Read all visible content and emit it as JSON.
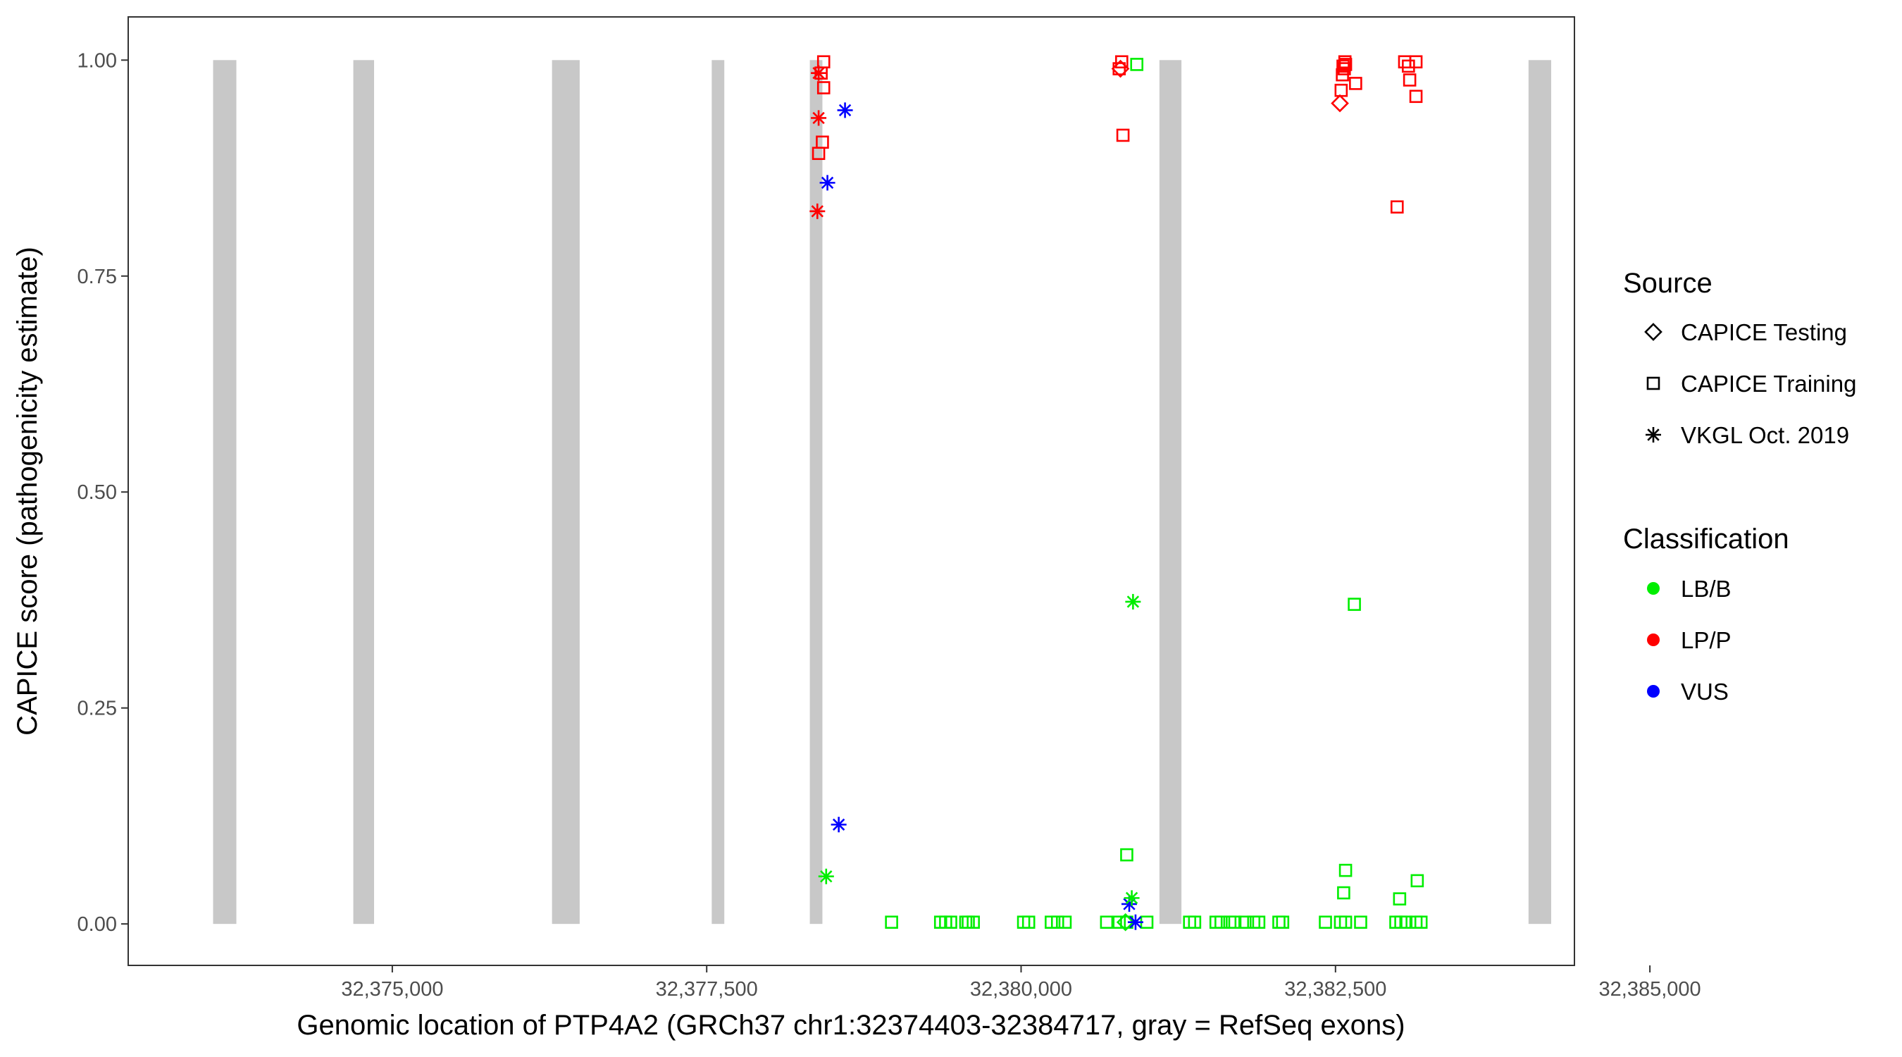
{
  "chart_data": {
    "type": "scatter",
    "title": "",
    "xlabel": "Genomic location of PTP4A2 (GRCh37 chr1:32374403-32384717, gray = RefSeq exons)",
    "ylabel": "CAPICE score (pathogenicity estimate)",
    "xlim": [
      32372900,
      32384400
    ],
    "ylim": [
      -0.048,
      1.05
    ],
    "x_ticks": [
      32375000,
      32377500,
      32380000,
      32382500,
      32385000
    ],
    "x_tick_labels": [
      "32,375,000",
      "32,377,500",
      "32,380,000",
      "32,382,500",
      "32,385,000"
    ],
    "y_ticks": [
      0,
      0.25,
      0.5,
      0.75,
      1.0
    ],
    "y_tick_labels": [
      "0.00",
      "0.25",
      "0.50",
      "0.75",
      "1.00"
    ],
    "grid": false,
    "exons": [
      [
        32373575,
        32373760
      ],
      [
        32374690,
        32374855
      ],
      [
        32376270,
        32376490
      ],
      [
        32377540,
        32377640
      ],
      [
        32378320,
        32378420
      ],
      [
        32381100,
        32381275
      ],
      [
        32384035,
        32384215
      ]
    ],
    "legend": {
      "position": "right",
      "source": {
        "title": "Source",
        "items": [
          {
            "label": "CAPICE Testing",
            "shape": "diamond"
          },
          {
            "label": "CAPICE Training",
            "shape": "square"
          },
          {
            "label": "VKGL Oct. 2019",
            "shape": "asterisk"
          }
        ]
      },
      "classification": {
        "title": "Classification",
        "items": [
          {
            "label": "LB/B",
            "color": "#00ee00"
          },
          {
            "label": "LP/P",
            "color": "#ff0000"
          },
          {
            "label": "VUS",
            "color": "#0000ff"
          }
        ]
      }
    },
    "series": [
      {
        "source": "CAPICE Testing",
        "classification": "LP/P",
        "points": [
          [
            32380790,
            0.99
          ],
          [
            32382535,
            0.95
          ]
        ]
      },
      {
        "source": "CAPICE Testing",
        "classification": "LB/B",
        "points": [
          [
            32380830,
            0.002
          ]
        ]
      },
      {
        "source": "CAPICE Training",
        "classification": "LP/P",
        "points": [
          [
            32378430,
            0.998
          ],
          [
            32378410,
            0.985
          ],
          [
            32378430,
            0.968
          ],
          [
            32378420,
            0.905
          ],
          [
            32378390,
            0.892
          ],
          [
            32380800,
            0.998
          ],
          [
            32380780,
            0.99
          ],
          [
            32380810,
            0.913
          ],
          [
            32382575,
            0.998
          ],
          [
            32382580,
            0.995
          ],
          [
            32382560,
            0.993
          ],
          [
            32382570,
            0.99
          ],
          [
            32382555,
            0.983
          ],
          [
            32382545,
            0.965
          ],
          [
            32382660,
            0.973
          ],
          [
            32383050,
            0.998
          ],
          [
            32383140,
            0.998
          ],
          [
            32383080,
            0.993
          ],
          [
            32383090,
            0.977
          ],
          [
            32383140,
            0.958
          ],
          [
            32382990,
            0.83
          ]
        ]
      },
      {
        "source": "CAPICE Training",
        "classification": "LB/B",
        "points": [
          [
            32380920,
            0.995
          ],
          [
            32382650,
            0.37
          ],
          [
            32380840,
            0.08
          ],
          [
            32382580,
            0.062
          ],
          [
            32382565,
            0.036
          ],
          [
            32383150,
            0.05
          ],
          [
            32383010,
            0.029
          ],
          [
            32378970,
            0.002
          ],
          [
            32379360,
            0.002
          ],
          [
            32379400,
            0.002
          ],
          [
            32379440,
            0.002
          ],
          [
            32379560,
            0.002
          ],
          [
            32379580,
            0.002
          ],
          [
            32379620,
            0.002
          ],
          [
            32380020,
            0.002
          ],
          [
            32380060,
            0.002
          ],
          [
            32380240,
            0.002
          ],
          [
            32380290,
            0.002
          ],
          [
            32380350,
            0.002
          ],
          [
            32380680,
            0.002
          ],
          [
            32380780,
            0.002
          ],
          [
            32380840,
            0.002
          ],
          [
            32381000,
            0.002
          ],
          [
            32381340,
            0.002
          ],
          [
            32381380,
            0.002
          ],
          [
            32381550,
            0.002
          ],
          [
            32381590,
            0.002
          ],
          [
            32381660,
            0.002
          ],
          [
            32381700,
            0.002
          ],
          [
            32381780,
            0.002
          ],
          [
            32381850,
            0.002
          ],
          [
            32381890,
            0.002
          ],
          [
            32382050,
            0.002
          ],
          [
            32382080,
            0.002
          ],
          [
            32382420,
            0.002
          ],
          [
            32382540,
            0.002
          ],
          [
            32382580,
            0.002
          ],
          [
            32382700,
            0.002
          ],
          [
            32382980,
            0.002
          ],
          [
            32383020,
            0.002
          ],
          [
            32383060,
            0.002
          ],
          [
            32383140,
            0.002
          ],
          [
            32383180,
            0.002
          ]
        ]
      },
      {
        "source": "VKGL Oct. 2019",
        "classification": "LP/P",
        "points": [
          [
            32378390,
            0.985
          ],
          [
            32378390,
            0.933
          ],
          [
            32378380,
            0.825
          ]
        ]
      },
      {
        "source": "VKGL Oct. 2019",
        "classification": "VUS",
        "points": [
          [
            32378600,
            0.942
          ],
          [
            32378460,
            0.858
          ],
          [
            32378550,
            0.115
          ],
          [
            32380860,
            0.023
          ],
          [
            32380910,
            0.002
          ]
        ]
      },
      {
        "source": "VKGL Oct. 2019",
        "classification": "LB/B",
        "points": [
          [
            32380890,
            0.373
          ],
          [
            32378450,
            0.055
          ],
          [
            32380880,
            0.03
          ]
        ]
      }
    ]
  }
}
